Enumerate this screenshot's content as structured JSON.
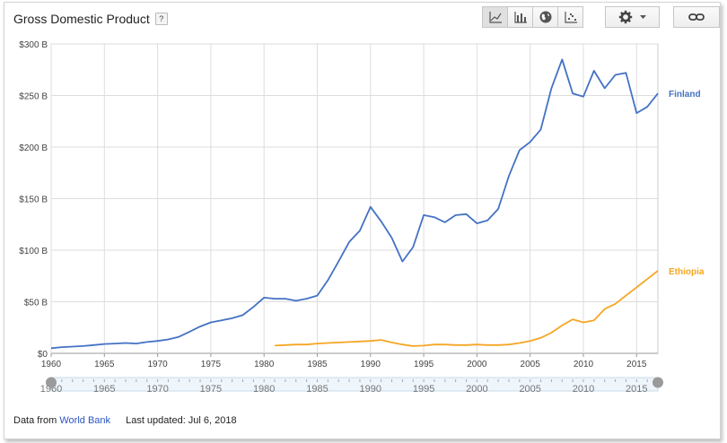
{
  "header": {
    "title": "Gross Domestic Product",
    "help_label": "?"
  },
  "toolbar": {
    "buttons": [
      {
        "icon": "line-chart-icon"
      },
      {
        "icon": "bar-chart-icon"
      },
      {
        "icon": "globe-icon"
      },
      {
        "icon": "scatter-chart-icon"
      }
    ],
    "settings_icon": "gear-icon",
    "link_icon": "link-icon"
  },
  "footer": {
    "source_prefix": "Data from",
    "source_link": "World Bank",
    "updated": "Last updated: Jul 6, 2018"
  },
  "colors": {
    "finland": "#4472c4",
    "ethiopia": "#f5a623",
    "grid": "#dddddd"
  },
  "chart_data": {
    "type": "line",
    "title": "Gross Domestic Product",
    "xlabel": "",
    "ylabel": "",
    "xlim": [
      1960,
      2017
    ],
    "ylim": [
      0,
      300
    ],
    "x_ticks": [
      1960,
      1965,
      1970,
      1975,
      1980,
      1985,
      1990,
      1995,
      2000,
      2005,
      2010,
      2015
    ],
    "y_ticks": [
      0,
      50,
      100,
      150,
      200,
      250,
      300
    ],
    "y_tick_labels": [
      "$0",
      "$50 B",
      "$100 B",
      "$150 B",
      "$200 B",
      "$250 B",
      "$300 B"
    ],
    "grid": true,
    "legend": "inline-right",
    "series": [
      {
        "name": "Finland",
        "color": "#4472c4",
        "x": [
          1960,
          1961,
          1962,
          1963,
          1964,
          1965,
          1966,
          1967,
          1968,
          1969,
          1970,
          1971,
          1972,
          1973,
          1974,
          1975,
          1976,
          1977,
          1978,
          1979,
          1980,
          1981,
          1982,
          1983,
          1984,
          1985,
          1986,
          1987,
          1988,
          1989,
          1990,
          1991,
          1992,
          1993,
          1994,
          1995,
          1996,
          1997,
          1998,
          1999,
          2000,
          2001,
          2002,
          2003,
          2004,
          2005,
          2006,
          2007,
          2008,
          2009,
          2010,
          2011,
          2012,
          2013,
          2014,
          2015,
          2016,
          2017
        ],
        "values": [
          5,
          6,
          6.5,
          7,
          8,
          9,
          9.5,
          10,
          9.5,
          11,
          12,
          13.5,
          16,
          21,
          26,
          30,
          32,
          34,
          37,
          45,
          54,
          53,
          53,
          51,
          53,
          56,
          71,
          89,
          108,
          119,
          142,
          128,
          112,
          89,
          103,
          134,
          132,
          127,
          134,
          135,
          126,
          129,
          140,
          172,
          197,
          205,
          217,
          257,
          285,
          252,
          249,
          274,
          257,
          270,
          272,
          233,
          239,
          252
        ]
      },
      {
        "name": "Ethiopia",
        "color": "#f5a623",
        "x": [
          1981,
          1982,
          1983,
          1984,
          1985,
          1986,
          1987,
          1988,
          1989,
          1990,
          1991,
          1992,
          1993,
          1994,
          1995,
          1996,
          1997,
          1998,
          1999,
          2000,
          2001,
          2002,
          2003,
          2004,
          2005,
          2006,
          2007,
          2008,
          2009,
          2010,
          2011,
          2012,
          2013,
          2014,
          2015,
          2016,
          2017
        ],
        "values": [
          7.5,
          8,
          8.5,
          8.5,
          9.5,
          10,
          10.5,
          11,
          11.5,
          12,
          13,
          10.5,
          8.5,
          7,
          7.5,
          8.5,
          8.5,
          8,
          8,
          8.5,
          8,
          8,
          8.5,
          10,
          12,
          15,
          20,
          27,
          33,
          30,
          32,
          43,
          48,
          56,
          64,
          72,
          80
        ]
      }
    ],
    "range_slider": {
      "start": 1960,
      "end": 2017
    }
  }
}
